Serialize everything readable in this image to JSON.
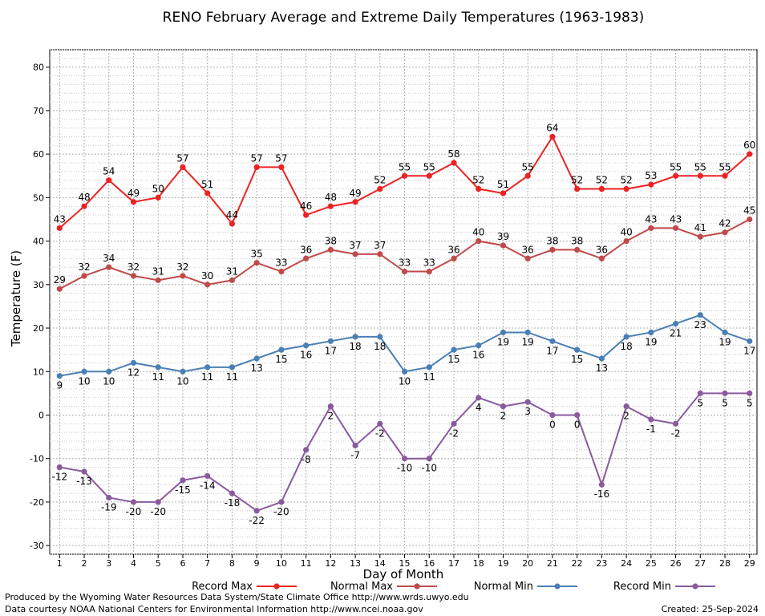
{
  "chart_data": {
    "type": "line",
    "title": "RENO February Average and Extreme Daily Temperatures (1963-1983)",
    "xlabel": "Day of Month",
    "ylabel": "Temperature (F)",
    "ylim": [
      -32,
      84
    ],
    "xlim": [
      0.6,
      29.3
    ],
    "yticks": [
      -30,
      -20,
      -10,
      0,
      10,
      20,
      30,
      40,
      50,
      60,
      70,
      80
    ],
    "xticks": [
      1,
      2,
      3,
      4,
      5,
      6,
      7,
      8,
      9,
      10,
      11,
      12,
      13,
      14,
      15,
      16,
      17,
      18,
      19,
      20,
      21,
      22,
      23,
      24,
      25,
      26,
      27,
      28,
      29
    ],
    "grid": true,
    "legend_position": "bottom",
    "series": [
      {
        "name": "Record Max",
        "color": "#ee2222",
        "label_pos": "above",
        "values": [
          43,
          48,
          54,
          49,
          50,
          57,
          51,
          44,
          57,
          57,
          46,
          48,
          49,
          52,
          55,
          55,
          58,
          52,
          51,
          55,
          64,
          52,
          52,
          52,
          53,
          55,
          55,
          55,
          60
        ]
      },
      {
        "name": "Normal Max",
        "color": "#c04a4a",
        "label_pos": "above",
        "values": [
          29,
          32,
          34,
          32,
          31,
          32,
          30,
          31,
          35,
          33,
          36,
          38,
          37,
          37,
          33,
          33,
          36,
          40,
          39,
          36,
          38,
          38,
          36,
          40,
          43,
          43,
          41,
          42,
          45
        ]
      },
      {
        "name": "Normal Min",
        "color": "#4a7fb5",
        "label_pos": "below",
        "values": [
          9,
          10,
          10,
          12,
          11,
          10,
          11,
          11,
          13,
          15,
          16,
          17,
          18,
          18,
          10,
          11,
          15,
          16,
          19,
          19,
          17,
          15,
          13,
          18,
          19,
          21,
          23,
          19,
          17
        ]
      },
      {
        "name": "Record Min",
        "color": "#8a5a9e",
        "label_pos": "below",
        "values": [
          -12,
          -13,
          -19,
          -20,
          -20,
          -15,
          -14,
          -18,
          -22,
          -20,
          -8,
          2,
          -7,
          -2,
          -10,
          -10,
          -2,
          4,
          2,
          3,
          0,
          0,
          -16,
          2,
          -1,
          -2,
          5,
          5,
          5
        ]
      }
    ]
  },
  "footer": {
    "line1": "Produced by the Wyoming Water Resources Data System/State Climate Office http://www.wrds.uwyo.edu",
    "line2": "Data courtesy NOAA National Centers for Environmental Information http://www.ncei.noaa.gov",
    "created": "Created:  25-Sep-2024"
  }
}
